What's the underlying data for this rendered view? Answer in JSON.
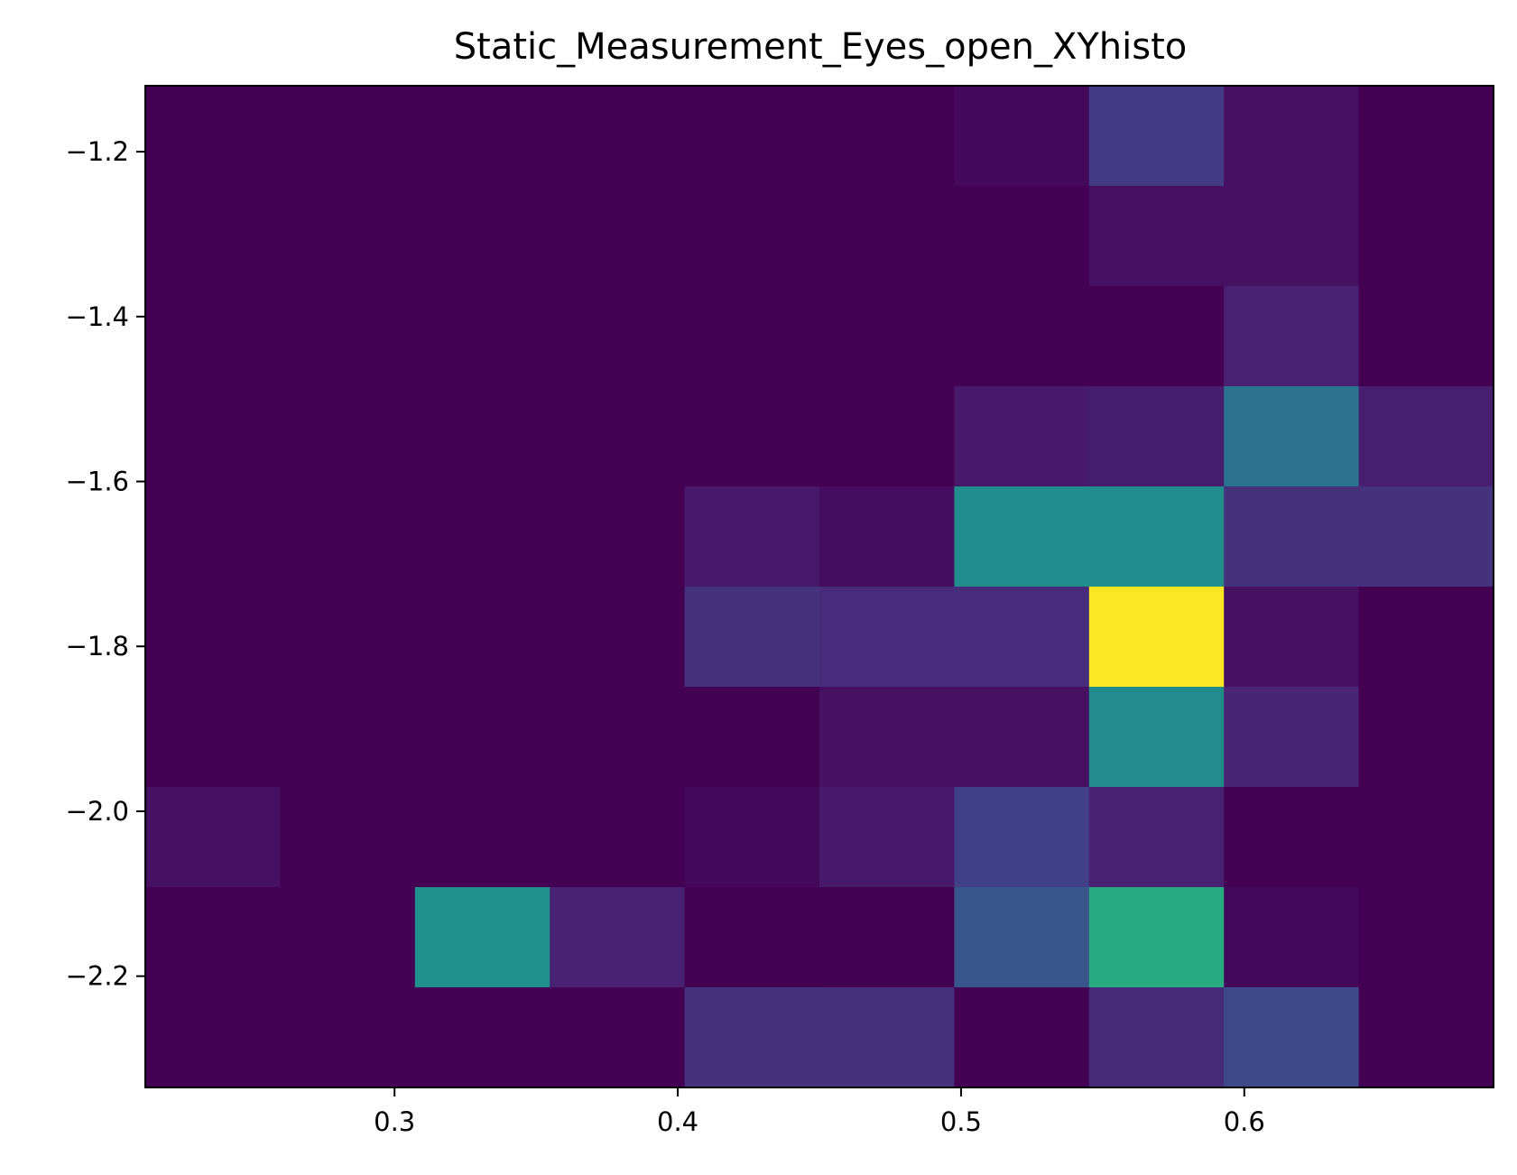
{
  "chart_data": {
    "type": "heatmap",
    "title": "Static_Measurement_Eyes_open_XYhisto",
    "xlabel": "",
    "ylabel": "",
    "colormap": "viridis",
    "xlim": [
      0.212,
      0.688
    ],
    "ylim": [
      -2.335,
      -1.12
    ],
    "x_edges": [
      0.212,
      0.2596,
      0.3072,
      0.3548,
      0.4024,
      0.45,
      0.4976,
      0.5452,
      0.5928,
      0.6404,
      0.688
    ],
    "y_edges": [
      -2.335,
      -2.2135,
      -2.092,
      -1.9705,
      -1.849,
      -1.7275,
      -1.606,
      -1.4845,
      -1.363,
      -1.2415,
      -1.12
    ],
    "x_ticks": [
      {
        "value": 0.3,
        "label": "0.3"
      },
      {
        "value": 0.4,
        "label": "0.4"
      },
      {
        "value": 0.5,
        "label": "0.5"
      },
      {
        "value": 0.6,
        "label": "0.6"
      }
    ],
    "y_ticks": [
      {
        "value": -1.2,
        "label": "−1.2"
      },
      {
        "value": -1.4,
        "label": "−1.4"
      },
      {
        "value": -1.6,
        "label": "−1.6"
      },
      {
        "value": -1.8,
        "label": "−1.8"
      },
      {
        "value": -2.0,
        "label": "−2.0"
      },
      {
        "value": -2.2,
        "label": "−2.2"
      }
    ],
    "counts_top_to_bottom": [
      [
        0,
        0,
        0,
        0,
        0,
        0,
        0.4,
        3,
        0.8,
        0
      ],
      [
        0,
        0,
        0,
        0,
        0,
        0,
        0,
        0.8,
        0.8,
        0
      ],
      [
        0,
        0,
        0,
        0,
        0,
        0,
        0,
        0,
        1.6,
        0
      ],
      [
        0,
        0,
        0,
        0,
        0,
        0,
        1.2,
        1.4,
        6.5,
        1.5
      ],
      [
        0,
        0,
        0,
        0,
        1.2,
        0.6,
        8.3,
        8.3,
        2.5,
        2.5
      ],
      [
        0,
        0,
        0,
        0,
        2.5,
        2.2,
        2.2,
        17,
        0.8,
        0
      ],
      [
        0,
        0,
        0,
        0,
        0,
        0.8,
        0.8,
        8.2,
        1.8,
        0
      ],
      [
        0.8,
        0,
        0,
        0,
        0.4,
        1.2,
        3.2,
        1.6,
        0,
        0
      ],
      [
        0,
        0,
        8.5,
        1.6,
        0,
        0,
        4.6,
        10.5,
        0.4,
        0
      ],
      [
        0,
        0,
        0,
        0,
        2.5,
        2.4,
        0,
        2.1,
        3.8,
        0
      ]
    ],
    "vmin": 0,
    "vmax": 17,
    "grid": false,
    "legend": "none"
  }
}
